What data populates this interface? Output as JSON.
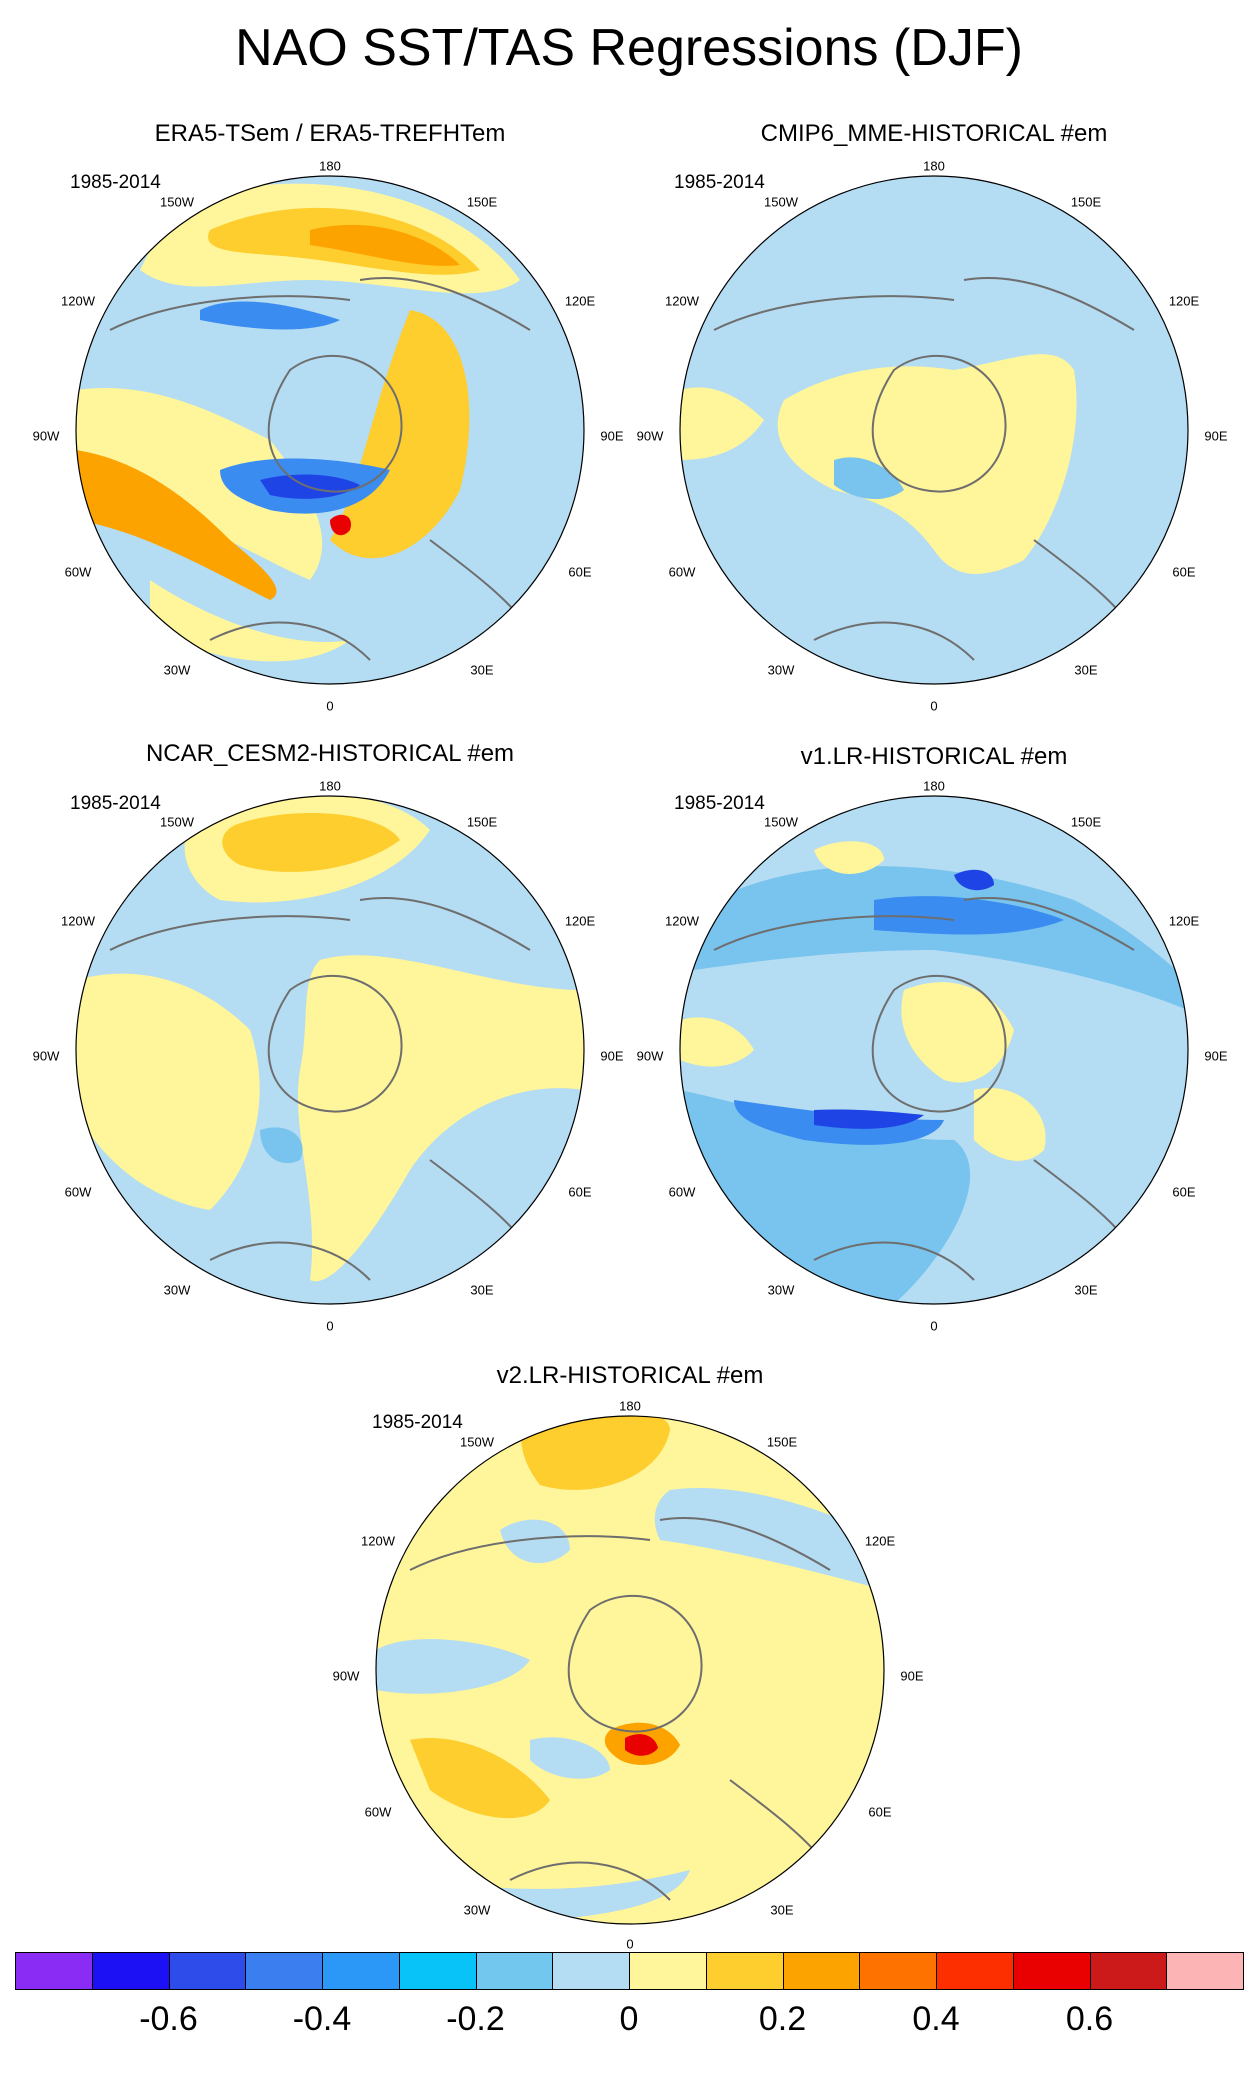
{
  "title": "NAO SST/TAS Regressions (DJF)",
  "colors": {
    "background": "#b4dcf2",
    "warm_light": "#fff59a",
    "warm_mid": "#fecd2e",
    "warm_strong": "#fda300",
    "warm_hot": "#fe6a00",
    "red": "#e90000",
    "cool_mid": "#78c4ee",
    "cool_strong": "#3a8cf0",
    "cool_deep": "#1f44e6",
    "coast": "#6e6e6e"
  },
  "longitude_labels": {
    "top": "180",
    "bottom": "0",
    "left_upper": "150W",
    "left_mid_upper": "120W",
    "left_mid": "90W",
    "left_mid_lower": "60W",
    "left_lower": "30W",
    "right_upper": "150E",
    "right_mid_upper": "120E",
    "right_mid": "90E",
    "right_mid_lower": "60E",
    "right_lower": "30E"
  },
  "panels": [
    {
      "title": "ERA5-TSem / ERA5-TREFHTem",
      "period": "1985-2014"
    },
    {
      "title": "CMIP6_MME-HISTORICAL  #em",
      "period": "1985-2014"
    },
    {
      "title": "NCAR_CESM2-HISTORICAL  #em",
      "period": "1985-2014"
    },
    {
      "title": "v1.LR-HISTORICAL  #em",
      "period": "1985-2014"
    },
    {
      "title": "v2.LR-HISTORICAL  #em",
      "period": "1985-2014"
    }
  ],
  "colorbar": {
    "colors": [
      "#8a2cf4",
      "#1c10f4",
      "#2e4cea",
      "#3b7ef0",
      "#2b97f6",
      "#08c3f8",
      "#72c7ef",
      "#b4dcf2",
      "#fff59a",
      "#fecd2e",
      "#fda300",
      "#fe7300",
      "#fd2e00",
      "#e90000",
      "#cc1a1a",
      "#fdb4b4"
    ],
    "tick_labels": [
      "-0.6",
      "-0.4",
      "-0.2",
      "0",
      "0.2",
      "0.4",
      "0.6"
    ]
  }
}
